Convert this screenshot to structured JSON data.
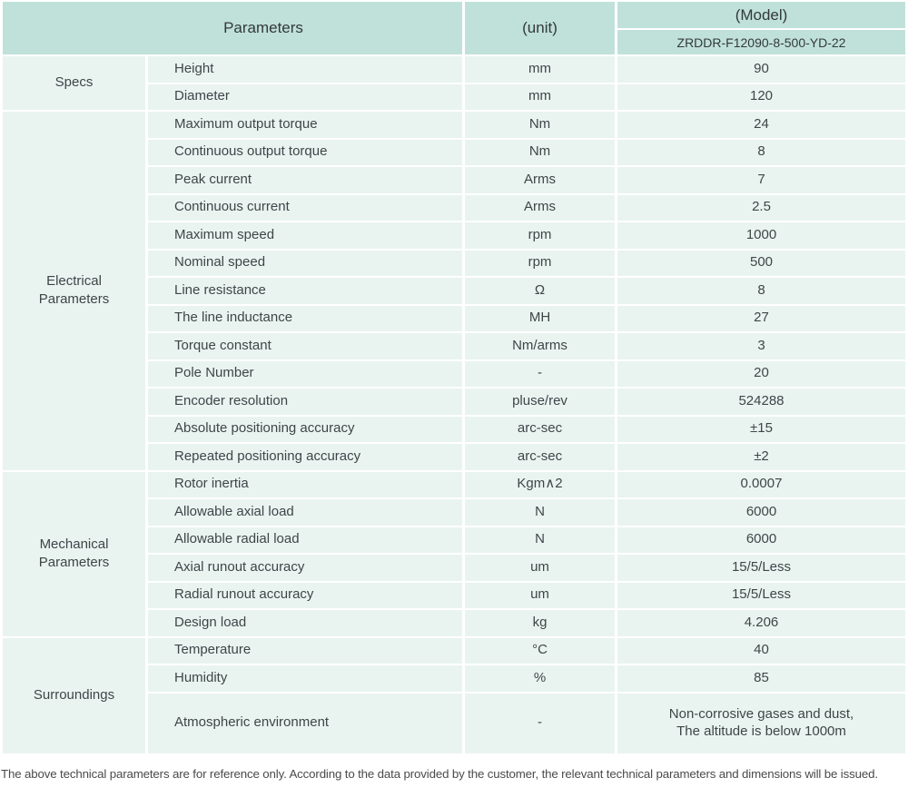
{
  "colors": {
    "header_bg": "#c0e1da",
    "row_bg": "#e9f4f1",
    "gap": "#ffffff",
    "header_text": "#33393b",
    "cell_text": "#3f4547",
    "footer_text": "#4a4a4a"
  },
  "table": {
    "header": {
      "parameters_label": "Parameters",
      "unit_label": "(unit)",
      "model_label": "(Model)",
      "model_code": "ZRDDR-F12090-8-500-YD-22"
    },
    "sections": [
      {
        "group": "Specs",
        "rows": [
          {
            "param": "Height",
            "unit": "mm",
            "value": "90"
          },
          {
            "param": "Diameter",
            "unit": "mm",
            "value": "120"
          }
        ]
      },
      {
        "group": "Electrical\nParameters",
        "rows": [
          {
            "param": "Maximum output torque",
            "unit": "Nm",
            "value": "24"
          },
          {
            "param": "Continuous output torque",
            "unit": "Nm",
            "value": "8"
          },
          {
            "param": "Peak current",
            "unit": "Arms",
            "value": "7"
          },
          {
            "param": "Continuous current",
            "unit": "Arms",
            "value": "2.5"
          },
          {
            "param": "Maximum speed",
            "unit": "rpm",
            "value": "1000"
          },
          {
            "param": "Nominal speed",
            "unit": "rpm",
            "value": "500"
          },
          {
            "param": "Line resistance",
            "unit": "Ω",
            "value": "8"
          },
          {
            "param": "The line inductance",
            "unit": "MH",
            "value": "27"
          },
          {
            "param": "Torque constant",
            "unit": "Nm/arms",
            "value": "3"
          },
          {
            "param": "Pole Number",
            "unit": "-",
            "value": "20"
          },
          {
            "param": "Encoder resolution",
            "unit": "pluse/rev",
            "value": "524288"
          },
          {
            "param": "Absolute positioning accuracy",
            "unit": "arc-sec",
            "value": "±15"
          },
          {
            "param": "Repeated positioning accuracy",
            "unit": "arc-sec",
            "value": "±2"
          }
        ]
      },
      {
        "group": "Mechanical\nParameters",
        "rows": [
          {
            "param": "Rotor inertia",
            "unit": "Kgm∧2",
            "value": "0.0007"
          },
          {
            "param": "Allowable axial load",
            "unit": "N",
            "value": "6000"
          },
          {
            "param": "Allowable radial load",
            "unit": "N",
            "value": "6000"
          },
          {
            "param": "Axial runout accuracy",
            "unit": "um",
            "value": "15/5/Less"
          },
          {
            "param": "Radial runout accuracy",
            "unit": "um",
            "value": "15/5/Less"
          },
          {
            "param": "Design load",
            "unit": "kg",
            "value": "4.206"
          }
        ]
      },
      {
        "group": "Surroundings",
        "rows": [
          {
            "param": "Temperature",
            "unit": "°C",
            "value": "40"
          },
          {
            "param": "Humidity",
            "unit": "%",
            "value": "85"
          },
          {
            "param": "Atmospheric environment",
            "unit": "-",
            "value": "Non-corrosive gases and dust,\nThe altitude is below 1000m",
            "tall": true
          }
        ]
      }
    ]
  },
  "footer": {
    "note": "The above technical parameters are for reference only. According to the data provided by the customer, the relevant technical parameters and dimensions will be issued."
  }
}
